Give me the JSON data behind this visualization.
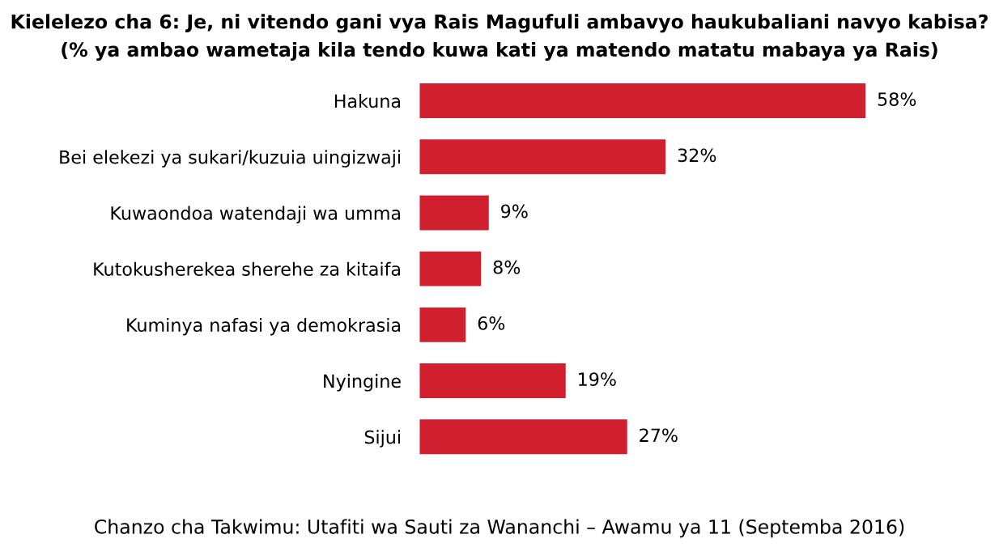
{
  "chart_data": {
    "type": "bar",
    "orientation": "horizontal",
    "title": "Kielelezo cha 6: Je, ni vitendo gani vya Rais Magufuli ambavyo haukubaliani navyo kabisa?",
    "subtitle": "(% ya ambao wametaja kila tendo kuwa kati ya matendo matatu mabaya ya Rais)",
    "categories": [
      "Hakuna",
      "Bei elekezi ya sukari/kuzuia uingizwaji",
      "Kuwaondoa watendaji wa umma",
      "Kutokusherekea sherehe za kitaifa",
      "Kuminya nafasi ya demokrasia",
      "Nyingine",
      "Sijui"
    ],
    "values": [
      58,
      32,
      9,
      8,
      6,
      19,
      27
    ],
    "value_labels": [
      "58%",
      "32%",
      "9%",
      "8%",
      "6%",
      "19%",
      "27%"
    ],
    "color": "#d0202f",
    "annotations": [
      "Chanzo cha Takwimu: Utafiti wa Sauti za Wananchi – Awamu ya 11 (Septemba 2016)"
    ]
  }
}
